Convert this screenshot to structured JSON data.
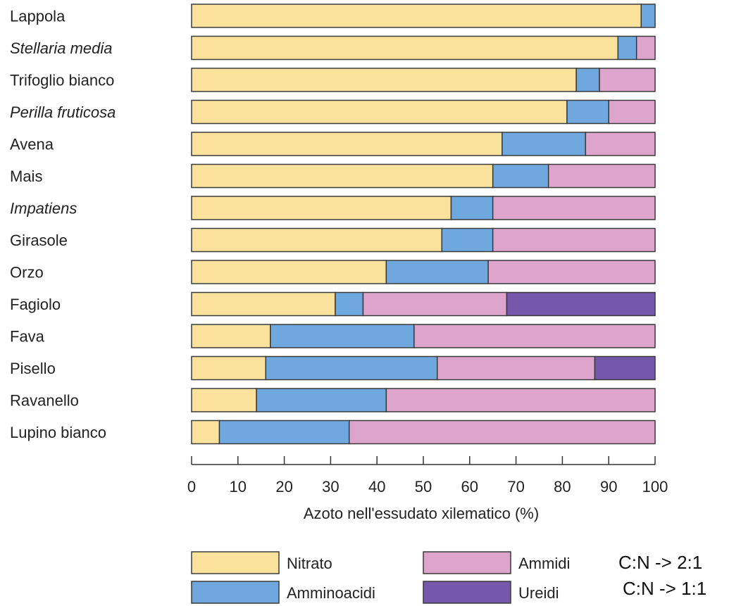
{
  "chart_data": {
    "type": "bar",
    "orientation": "horizontal",
    "stacked": true,
    "categories": [
      "Lappola",
      "Stellaria media",
      "Trifoglio bianco",
      "Perilla fruticosa",
      "Avena",
      "Mais",
      "Impatiens",
      "Girasole",
      "Orzo",
      "Fagiolo",
      "Fava",
      "Pisello",
      "Ravanello",
      "Lupino bianco"
    ],
    "italic_categories": [
      "Stellaria media",
      "Perilla fruticosa",
      "Impatiens"
    ],
    "series": [
      {
        "name": "Nitrato",
        "color": "#FAE29C",
        "values": [
          97,
          92,
          83,
          81,
          67,
          65,
          56,
          54,
          42,
          31,
          17,
          16,
          14,
          6
        ]
      },
      {
        "name": "Amminoacidi",
        "color": "#6EA8DF",
        "values": [
          3,
          4,
          5,
          9,
          18,
          12,
          9,
          11,
          22,
          6,
          31,
          37,
          28,
          28
        ]
      },
      {
        "name": "Ammidi",
        "color": "#DDA5CC",
        "values": [
          0,
          4,
          12,
          10,
          15,
          23,
          35,
          35,
          36,
          31,
          52,
          34,
          58,
          66
        ]
      },
      {
        "name": "Ureidi",
        "color": "#7558AC",
        "values": [
          0,
          0,
          0,
          0,
          0,
          0,
          0,
          0,
          0,
          32,
          0,
          13,
          0,
          0
        ]
      }
    ],
    "xlabel": "Azoto nell'essudato xilematico (%)",
    "xlim": [
      0,
      100
    ],
    "xticks": [
      "0",
      "10",
      "20",
      "30",
      "40",
      "50",
      "60",
      "70",
      "80",
      "90",
      "100"
    ],
    "grid": false,
    "legend_position": "bottom",
    "legend": [
      "Nitrato",
      "Amminoacidi",
      "Ammidi",
      "Ureidi"
    ],
    "annotations": [
      "C:N -> 2:1",
      "C:N -> 1:1"
    ]
  }
}
